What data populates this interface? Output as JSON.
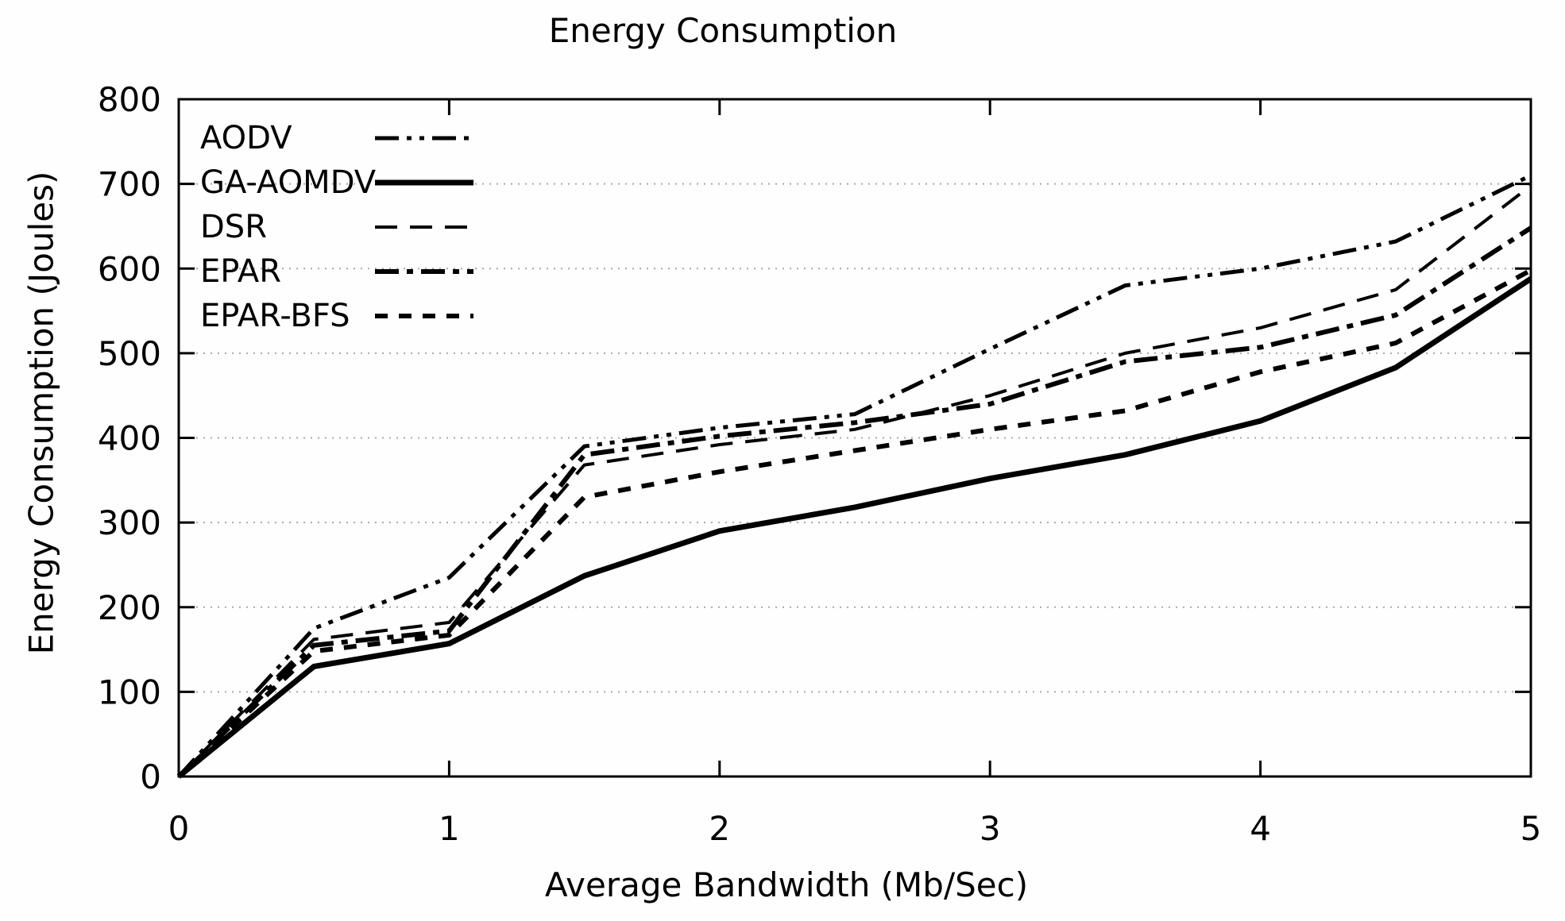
{
  "chart_data": {
    "type": "line",
    "title": "Energy Consumption",
    "xlabel": "Average Bandwidth (Mb/Sec)",
    "ylabel": "Energy Consumption (Joules)",
    "xlim": [
      0,
      5
    ],
    "ylim": [
      0,
      800
    ],
    "x_ticks": [
      0,
      1,
      2,
      3,
      4,
      5
    ],
    "y_ticks": [
      0,
      100,
      200,
      300,
      400,
      500,
      600,
      700,
      800
    ],
    "grid": "horizontal dotted lines at each y tick",
    "legend_position": "inside top-left, no frame",
    "line_color": "#000000",
    "grid_color": "#a8a8a8",
    "background_color": "#fefefe",
    "x": [
      0,
      0.5,
      1,
      1.5,
      2,
      2.5,
      3,
      3.5,
      4,
      4.5,
      5
    ],
    "series": [
      {
        "name": "AODV",
        "style": "dash-dot-dot",
        "dash": "30 10 6 10 6 10",
        "width": 5,
        "values": [
          0,
          175,
          235,
          390,
          412,
          428,
          505,
          580,
          600,
          632,
          710
        ]
      },
      {
        "name": "GA-AOMDV",
        "style": "solid",
        "dash": "",
        "width": 7,
        "values": [
          0,
          130,
          157,
          237,
          290,
          318,
          352,
          380,
          420,
          483,
          588
        ]
      },
      {
        "name": "DSR",
        "style": "long-dash",
        "dash": "28 16",
        "width": 4,
        "values": [
          0,
          162,
          182,
          368,
          392,
          410,
          450,
          500,
          530,
          575,
          698
        ]
      },
      {
        "name": "EPAR",
        "style": "dash-dot",
        "dash": "30 10 8 10",
        "width": 6,
        "values": [
          0,
          155,
          172,
          380,
          402,
          418,
          440,
          490,
          507,
          545,
          648
        ]
      },
      {
        "name": "EPAR-BFS",
        "style": "short-dash",
        "dash": "16 14",
        "width": 6,
        "values": [
          0,
          148,
          167,
          330,
          360,
          385,
          410,
          432,
          478,
          512,
          598
        ]
      }
    ]
  }
}
